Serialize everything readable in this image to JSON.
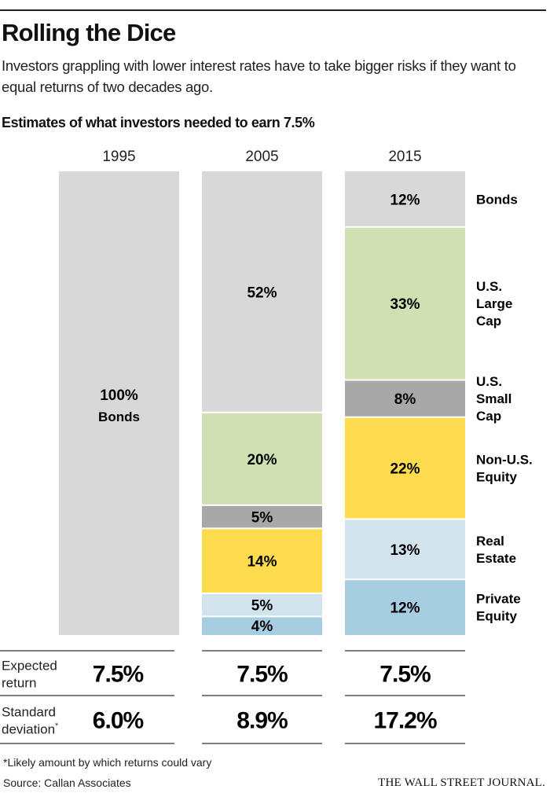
{
  "header": {
    "title": "Rolling the Dice",
    "subtitle": "Investors grappling with lower interest rates have to take bigger risks if they want to equal returns of two decades ago."
  },
  "chart_data": {
    "type": "bar",
    "stacked": true,
    "title": "Estimates of what investors needed to earn 7.5%",
    "categories": [
      "1995",
      "2005",
      "2015"
    ],
    "unit": "%",
    "series": [
      {
        "name": "Bonds",
        "color": "#d8d8d8",
        "values": [
          100,
          52,
          12
        ]
      },
      {
        "name": "U.S. Large Cap",
        "color": "#cfe0b3",
        "values": [
          0,
          20,
          33
        ]
      },
      {
        "name": "U.S. Small Cap",
        "color": "#a8a8a8",
        "values": [
          0,
          5,
          8
        ]
      },
      {
        "name": "Non-U.S. Equity",
        "color": "#ffdb4d",
        "values": [
          0,
          14,
          22
        ]
      },
      {
        "name": "Real Estate",
        "color": "#d1e4ee",
        "values": [
          0,
          5,
          13
        ]
      },
      {
        "name": "Private Equity",
        "color": "#a6cde0",
        "values": [
          0,
          4,
          12
        ]
      }
    ],
    "legend_labels": [
      [
        "Bonds"
      ],
      [
        "U.S.",
        "Large",
        "Cap"
      ],
      [
        "U.S.",
        "Small",
        "Cap"
      ],
      [
        "Non-U.S.",
        "Equity"
      ],
      [
        "Real",
        "Estate"
      ],
      [
        "Private",
        "Equity"
      ]
    ],
    "bar_1995_sublabel": "Bonds",
    "legend_placement": "right",
    "ylim": [
      0,
      100
    ],
    "grid": false,
    "table": {
      "rows": [
        {
          "label": [
            "Expected",
            "return"
          ],
          "values": [
            "7.5%",
            "7.5%",
            "7.5%"
          ]
        },
        {
          "label": [
            "Standard",
            "deviation"
          ],
          "label_mark": "*",
          "values": [
            "6.0%",
            "8.9%",
            "17.2%"
          ]
        }
      ]
    }
  },
  "footer": {
    "note": "*Likely amount by which returns could vary",
    "source": "Source: Callan Associates",
    "publisher": "THE WALL STREET JOURNAL."
  }
}
